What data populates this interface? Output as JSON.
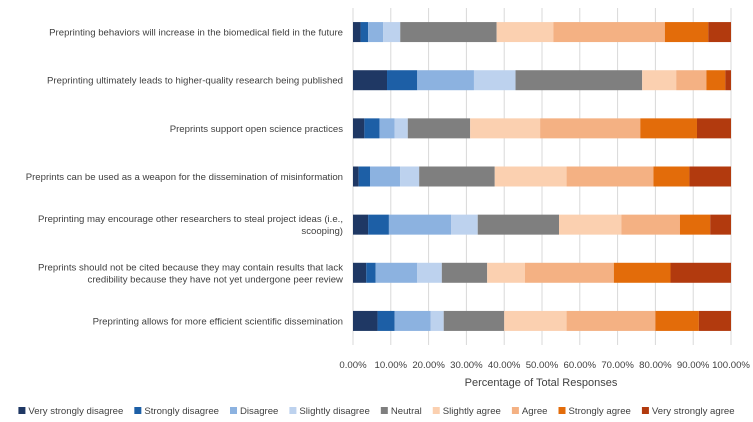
{
  "chart_data": {
    "type": "stacked-bar-horizontal-100",
    "title": "",
    "xlabel": "Percentage of Total Responses",
    "ylabel": "",
    "xlim": [
      0,
      100
    ],
    "x_ticks": [
      "0.00%",
      "10.00%",
      "20.00%",
      "30.00%",
      "40.00%",
      "50.00%",
      "60.00%",
      "70.00%",
      "80.00%",
      "90.00%",
      "100.00%"
    ],
    "categories": [
      [
        "Preprinting behaviors will increase in the biomedical field in the future"
      ],
      [
        "Preprinting ultimately leads to higher-quality research being published"
      ],
      [
        "Preprints support open science practices"
      ],
      [
        "Preprints can be used as a weapon for the dissemination of misinformation"
      ],
      [
        "Preprinting may encourage other researchers to steal project ideas (i.e.,",
        "scooping)"
      ],
      [
        "Preprints should not be cited because they may contain results that lack",
        "credibility because they have not yet undergone peer review"
      ],
      [
        "Preprinting allows for more efficient scientific dissemination"
      ]
    ],
    "series": [
      {
        "name": "Very strongly disagree",
        "color": "#1f3864",
        "values": [
          2.0,
          9.0,
          3.0,
          1.5,
          4.0,
          3.5,
          6.5
        ]
      },
      {
        "name": "Strongly disagree",
        "color": "#1d5fa6",
        "values": [
          2.0,
          8.0,
          4.0,
          3.0,
          5.5,
          2.5,
          4.5
        ]
      },
      {
        "name": "Disagree",
        "color": "#8cb2e0",
        "values": [
          4.0,
          15.0,
          4.0,
          8.0,
          16.5,
          11.0,
          9.5
        ]
      },
      {
        "name": "Slightly disagree",
        "color": "#bdd2ee",
        "values": [
          4.5,
          11.0,
          3.5,
          5.0,
          7.0,
          6.5,
          3.5
        ]
      },
      {
        "name": "Neutral",
        "color": "#7f7f7f",
        "values": [
          25.5,
          33.5,
          16.5,
          20.0,
          21.5,
          12.0,
          16.0
        ]
      },
      {
        "name": "Slightly agree",
        "color": "#fbd0b0",
        "values": [
          15.0,
          9.0,
          18.5,
          19.0,
          16.5,
          10.0,
          16.5
        ]
      },
      {
        "name": "Agree",
        "color": "#f4b183",
        "values": [
          29.5,
          8.0,
          26.5,
          23.0,
          15.5,
          23.5,
          23.5
        ]
      },
      {
        "name": "Strongly agree",
        "color": "#e36c0a",
        "values": [
          11.5,
          5.0,
          15.0,
          9.5,
          8.0,
          15.0,
          11.5
        ]
      },
      {
        "name": "Very strongly agree",
        "color": "#b23a0e",
        "values": [
          6.0,
          1.5,
          9.0,
          11.0,
          5.5,
          16.0,
          8.5
        ]
      }
    ]
  }
}
